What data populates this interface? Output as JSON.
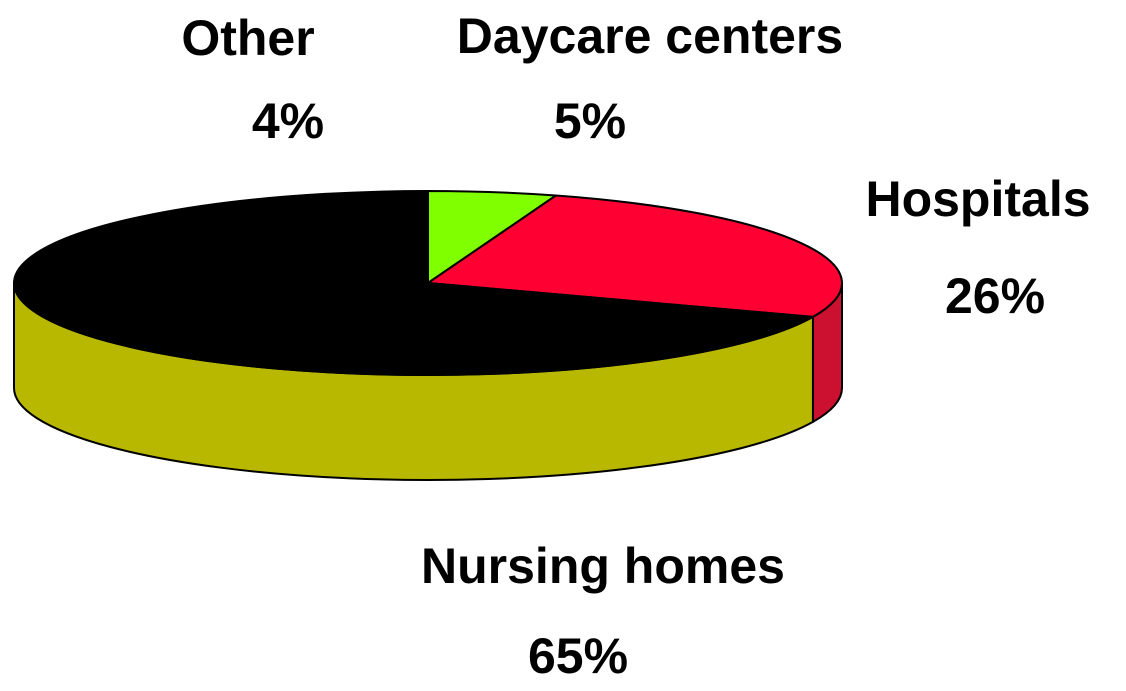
{
  "chart_data": {
    "type": "pie",
    "categories": [
      "Daycare centers",
      "Hospitals",
      "Nursing homes",
      "Other"
    ],
    "values": [
      5,
      26,
      65,
      4
    ],
    "value_labels": [
      "5%",
      "26%",
      "65%",
      "4%"
    ],
    "colors": [
      "#80ff00",
      "#ff0033",
      "#000000",
      "#000000"
    ],
    "side_colors": [
      "#60c000",
      "#cc1030",
      "#b8b800",
      "#000000"
    ],
    "three_d": true
  }
}
